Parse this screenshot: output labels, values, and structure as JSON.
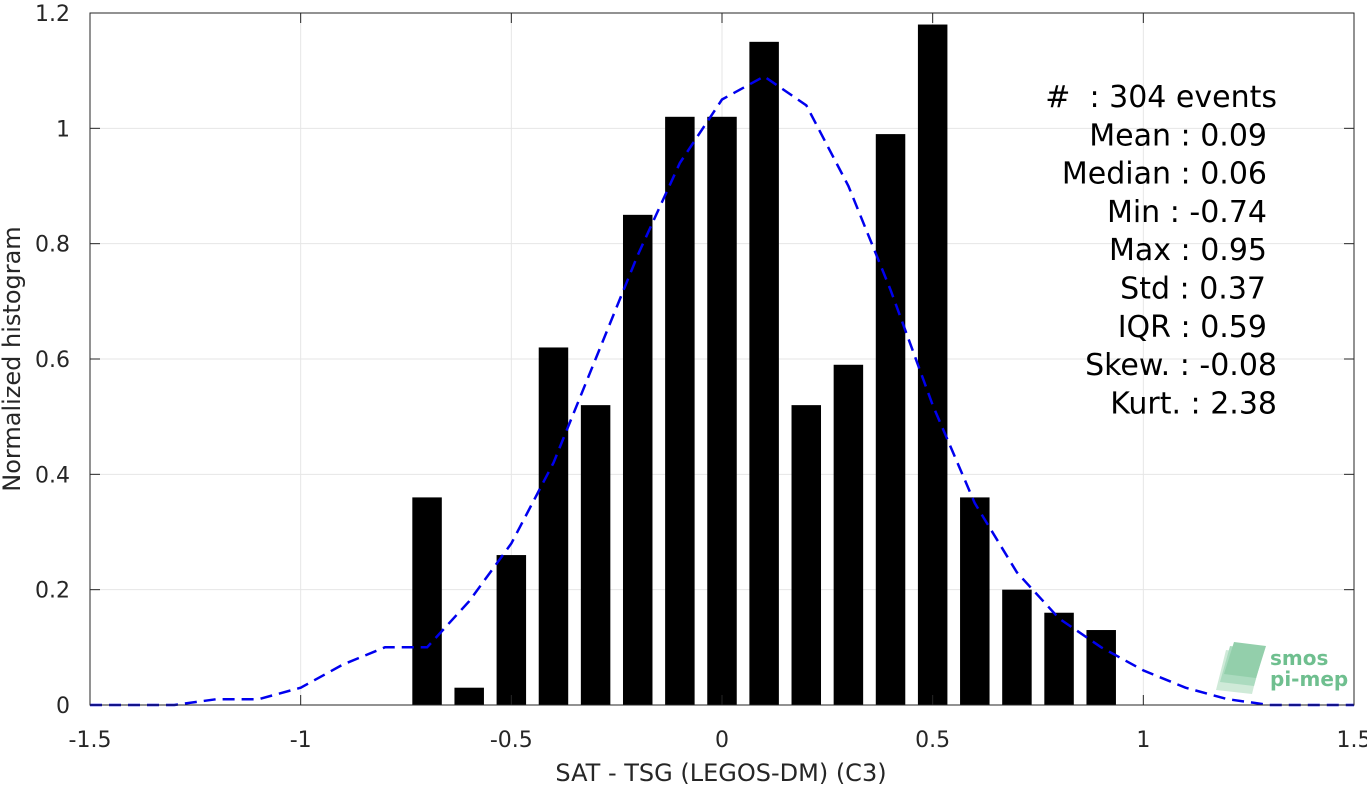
{
  "chart_data": {
    "type": "bar",
    "xlabel": "SAT - TSG (LEGOS-DM) (C3)",
    "ylabel": "Normalized histogram",
    "xlim": [
      -1.5,
      1.5
    ],
    "ylim": [
      0,
      1.2
    ],
    "xticks": [
      -1.5,
      -1,
      -0.5,
      0,
      0.5,
      1,
      1.5
    ],
    "xtick_labels": [
      "-1.5",
      "-1",
      "-0.5",
      "0",
      "0.5",
      "1",
      "1.5"
    ],
    "yticks": [
      0,
      0.2,
      0.4,
      0.6,
      0.8,
      1,
      1.2
    ],
    "ytick_labels": [
      "0",
      "0.2",
      "0.4",
      "0.6",
      "0.8",
      "1",
      "1.2"
    ],
    "grid": true,
    "bar_color": "#000000",
    "bars": {
      "centers": [
        -0.7,
        -0.6,
        -0.5,
        -0.4,
        -0.3,
        -0.2,
        -0.1,
        0.0,
        0.1,
        0.2,
        0.3,
        0.4,
        0.5,
        0.6,
        0.7,
        0.8,
        0.9
      ],
      "width": 0.07,
      "values": [
        0.36,
        0.03,
        0.26,
        0.62,
        0.52,
        0.85,
        1.02,
        1.02,
        1.15,
        0.52,
        0.59,
        0.99,
        1.18,
        0.36,
        0.2,
        0.16,
        0.13
      ]
    },
    "fit_curve": {
      "style": "dashed",
      "color": "#0000ee",
      "x": [
        -1.5,
        -1.4,
        -1.3,
        -1.2,
        -1.1,
        -1.0,
        -0.9,
        -0.8,
        -0.7,
        -0.6,
        -0.5,
        -0.4,
        -0.3,
        -0.2,
        -0.1,
        0.0,
        0.1,
        0.2,
        0.3,
        0.4,
        0.5,
        0.6,
        0.7,
        0.8,
        0.9,
        1.0,
        1.1,
        1.2,
        1.3,
        1.4,
        1.5
      ],
      "y": [
        0.0,
        0.0,
        0.0,
        0.01,
        0.01,
        0.03,
        0.07,
        0.1,
        0.1,
        0.18,
        0.28,
        0.42,
        0.6,
        0.78,
        0.94,
        1.05,
        1.09,
        1.04,
        0.9,
        0.72,
        0.52,
        0.35,
        0.23,
        0.15,
        0.1,
        0.06,
        0.03,
        0.01,
        0.0,
        0.0,
        0.0
      ]
    },
    "annotations": [
      "#  : 304 events",
      "Mean : 0.09",
      "Median : 0.06",
      "Min : -0.74",
      "Max : 0.95",
      "Std : 0.37",
      "IQR : 0.59",
      "Skew. : -0.08",
      "Kurt. : 2.38"
    ]
  },
  "logo": {
    "line1": "smos",
    "line2": "pi-mep",
    "color": "#6fbf8f"
  }
}
